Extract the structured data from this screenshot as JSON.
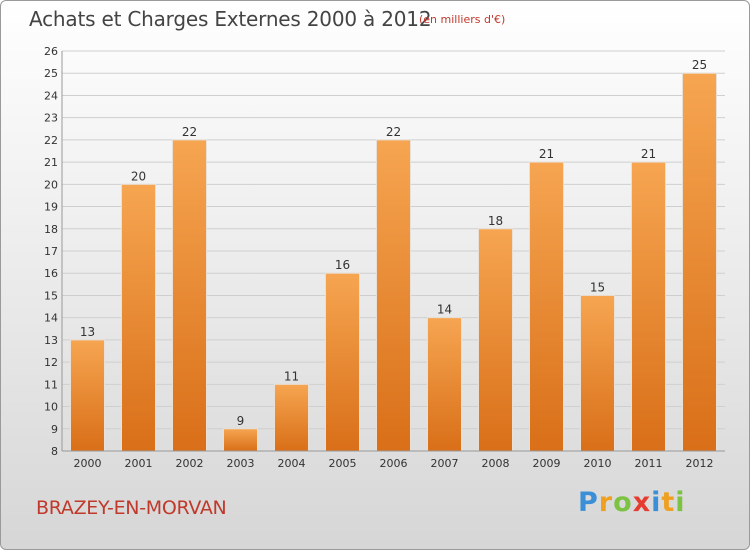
{
  "header": {
    "title": "Achats et Charges Externes 2000 à 2012",
    "subtitle": "(en milliers d'€)"
  },
  "footer": {
    "city": "BRAZEY-EN-MORVAN",
    "logo": {
      "letters": [
        "P",
        "r",
        "o",
        "x",
        "i",
        "t",
        "i"
      ],
      "colors": [
        "#3a8fd6",
        "#f0a020",
        "#7cc243",
        "#e63c2f",
        "#3a8fd6",
        "#f0a020",
        "#7cc243"
      ]
    }
  },
  "colors": {
    "bar_top": "#f6a551",
    "bar_bottom": "#d96f18",
    "grid": "#cfcfcf"
  },
  "chart_data": {
    "type": "bar",
    "title": "Achats et Charges Externes 2000 à 2012",
    "categories": [
      "2000",
      "2001",
      "2002",
      "2003",
      "2004",
      "2005",
      "2006",
      "2007",
      "2008",
      "2009",
      "2010",
      "2011",
      "2012"
    ],
    "values": [
      13,
      20,
      22,
      9,
      11,
      16,
      22,
      14,
      18,
      21,
      15,
      21,
      25
    ],
    "ylim": [
      8,
      26
    ],
    "yticks": [
      8,
      9,
      10,
      11,
      12,
      13,
      14,
      15,
      16,
      17,
      18,
      19,
      20,
      21,
      22,
      23,
      24,
      25,
      26
    ],
    "grid": true,
    "data_labels": true
  }
}
